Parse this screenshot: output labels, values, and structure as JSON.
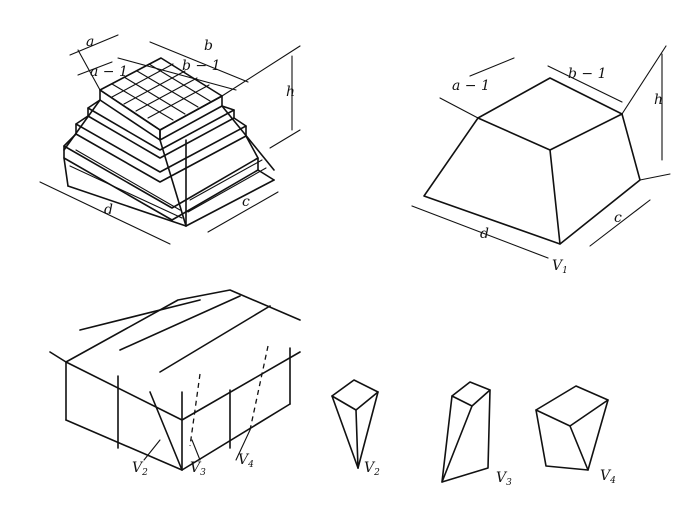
{
  "labels": {
    "a": "a",
    "b": "b",
    "a_minus_1": "a − 1",
    "b_minus_1": "b − 1",
    "h": "h",
    "c": "c",
    "d": "d",
    "v": "V",
    "v1_sub": "1",
    "v2_sub": "2",
    "v3_sub": "3",
    "v4_sub": "4"
  },
  "colors": {
    "ink": "#111111",
    "paper": "#ffffff"
  }
}
